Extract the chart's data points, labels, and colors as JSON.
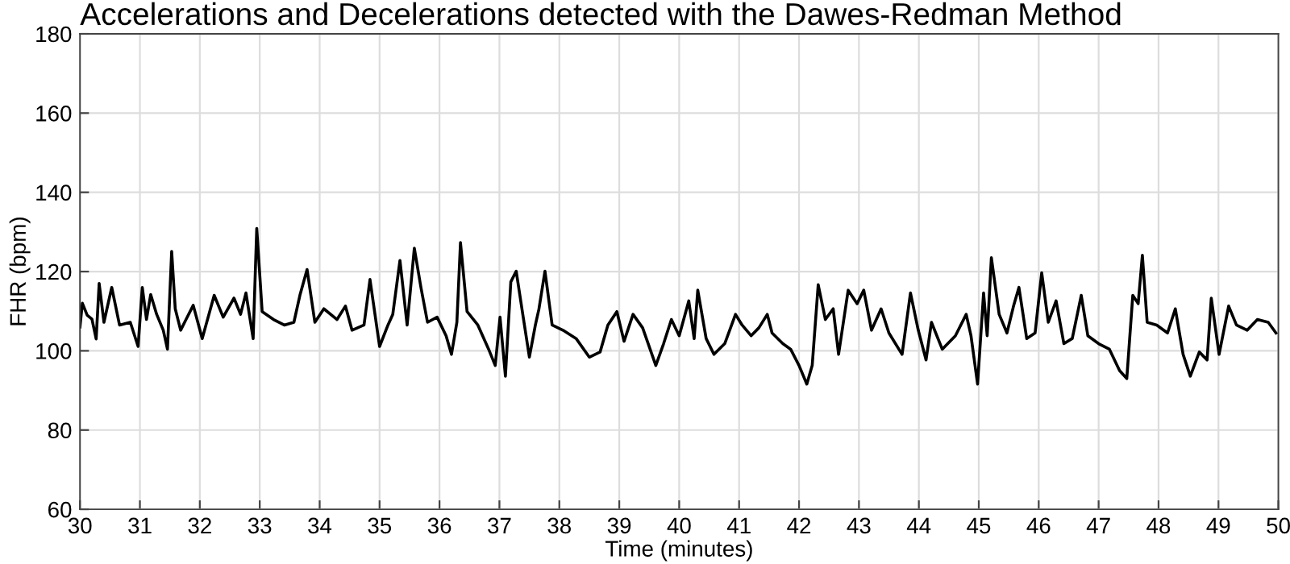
{
  "chart_data": {
    "type": "line",
    "title": "Accelerations and Decelerations detected with the Dawes-Redman Method",
    "xlabel": "Time (minutes)",
    "ylabel": "FHR (bpm)",
    "xlim": [
      30,
      50
    ],
    "xticks": [
      30,
      31,
      32,
      33,
      34,
      35,
      36,
      37,
      38,
      39,
      40,
      41,
      42,
      43,
      44,
      45,
      46,
      47,
      48,
      49,
      50
    ],
    "ylim": [
      60,
      180
    ],
    "yticks": [
      60,
      80,
      100,
      120,
      140,
      160,
      180
    ],
    "grid": true,
    "marker": "none",
    "line_style": "solid",
    "series": [
      {
        "color": "#000000",
        "x": [
          30.0,
          30.04,
          30.12,
          30.2,
          30.27,
          30.32,
          30.4,
          30.53,
          30.66,
          30.84,
          30.97,
          31.04,
          31.11,
          31.18,
          31.28,
          31.39,
          31.46,
          31.53,
          31.59,
          31.68,
          31.77,
          31.89,
          32.04,
          32.24,
          32.39,
          32.57,
          32.68,
          32.77,
          32.89,
          32.95,
          33.04,
          33.23,
          33.41,
          33.57,
          33.67,
          33.79,
          33.92,
          34.07,
          34.29,
          34.43,
          34.54,
          34.74,
          34.84,
          35.0,
          35.14,
          35.22,
          35.34,
          35.46,
          35.58,
          35.69,
          35.8,
          35.96,
          36.11,
          36.2,
          36.29,
          36.35,
          36.46,
          36.64,
          36.82,
          36.93,
          37.01,
          37.1,
          37.19,
          37.28,
          37.39,
          37.5,
          37.6,
          37.66,
          37.76,
          37.88,
          38.06,
          38.28,
          38.5,
          38.68,
          38.81,
          38.96,
          39.08,
          39.23,
          39.39,
          39.61,
          39.74,
          39.87,
          40.0,
          40.16,
          40.25,
          40.31,
          40.45,
          40.58,
          40.76,
          40.94,
          41.05,
          41.2,
          41.33,
          41.47,
          41.55,
          41.73,
          41.86,
          42.0,
          42.13,
          42.22,
          42.32,
          42.44,
          42.57,
          42.66,
          42.82,
          42.97,
          43.08,
          43.21,
          43.37,
          43.5,
          43.72,
          43.86,
          43.99,
          44.12,
          44.21,
          44.39,
          44.61,
          44.79,
          44.87,
          44.98,
          45.08,
          45.14,
          45.21,
          45.34,
          45.47,
          45.58,
          45.67,
          45.8,
          45.94,
          46.05,
          46.16,
          46.29,
          46.42,
          46.56,
          46.71,
          46.82,
          47.0,
          47.18,
          47.35,
          47.47,
          47.57,
          47.66,
          47.73,
          47.81,
          47.97,
          48.15,
          48.28,
          48.41,
          48.53,
          48.68,
          48.81,
          48.88,
          49.01,
          49.17,
          49.3,
          49.48,
          49.65,
          49.83,
          49.96
        ],
        "values": [
          106,
          112,
          109,
          108,
          103,
          117,
          107.2,
          116.0,
          106.5,
          107.2,
          101.1,
          116.0,
          107.9,
          114.2,
          109.2,
          105.2,
          100.4,
          125.1,
          110.6,
          105.2,
          107.9,
          111.5,
          103.1,
          114.0,
          108.5,
          113.3,
          109.2,
          114.6,
          103.1,
          130.9,
          109.9,
          107.9,
          106.5,
          107.2,
          114.0,
          120.5,
          107.2,
          110.6,
          107.9,
          111.3,
          105.2,
          106.5,
          118.0,
          101.1,
          106.5,
          109.2,
          122.8,
          106.5,
          125.9,
          116.0,
          107.2,
          108.5,
          103.8,
          99.1,
          107.2,
          127.3,
          109.9,
          106.5,
          100.4,
          96.3,
          108.5,
          93.6,
          117.4,
          120.1,
          109.2,
          98.4,
          106.5,
          110.6,
          120.1,
          106.5,
          105.2,
          103.1,
          98.4,
          99.7,
          106.5,
          109.9,
          102.4,
          109.2,
          105.8,
          96.3,
          101.8,
          107.9,
          103.8,
          112.6,
          103.1,
          115.3,
          103.1,
          99.1,
          101.8,
          109.2,
          106.5,
          103.8,
          105.8,
          109.2,
          104.5,
          101.8,
          100.4,
          96.3,
          91.6,
          96.3,
          116.7,
          107.9,
          110.6,
          99.1,
          115.3,
          111.9,
          115.3,
          105.2,
          110.6,
          104.5,
          99.1,
          114.6,
          105.2,
          97.7,
          107.2,
          100.4,
          103.8,
          109.2,
          103.8,
          91.6,
          114.6,
          103.8,
          123.5,
          109.2,
          104.5,
          111.3,
          116.0,
          103.1,
          104.5,
          119.7,
          107.2,
          112.6,
          101.8,
          103.1,
          114.0,
          103.8,
          101.8,
          100.4,
          95.0,
          93.0,
          114.0,
          111.9,
          124.1,
          107.2,
          106.5,
          104.5,
          110.6,
          99.1,
          93.6,
          99.7,
          97.7,
          113.3,
          99.1,
          111.3,
          106.5,
          105.2,
          107.9,
          107.2,
          104.5
        ]
      }
    ]
  }
}
